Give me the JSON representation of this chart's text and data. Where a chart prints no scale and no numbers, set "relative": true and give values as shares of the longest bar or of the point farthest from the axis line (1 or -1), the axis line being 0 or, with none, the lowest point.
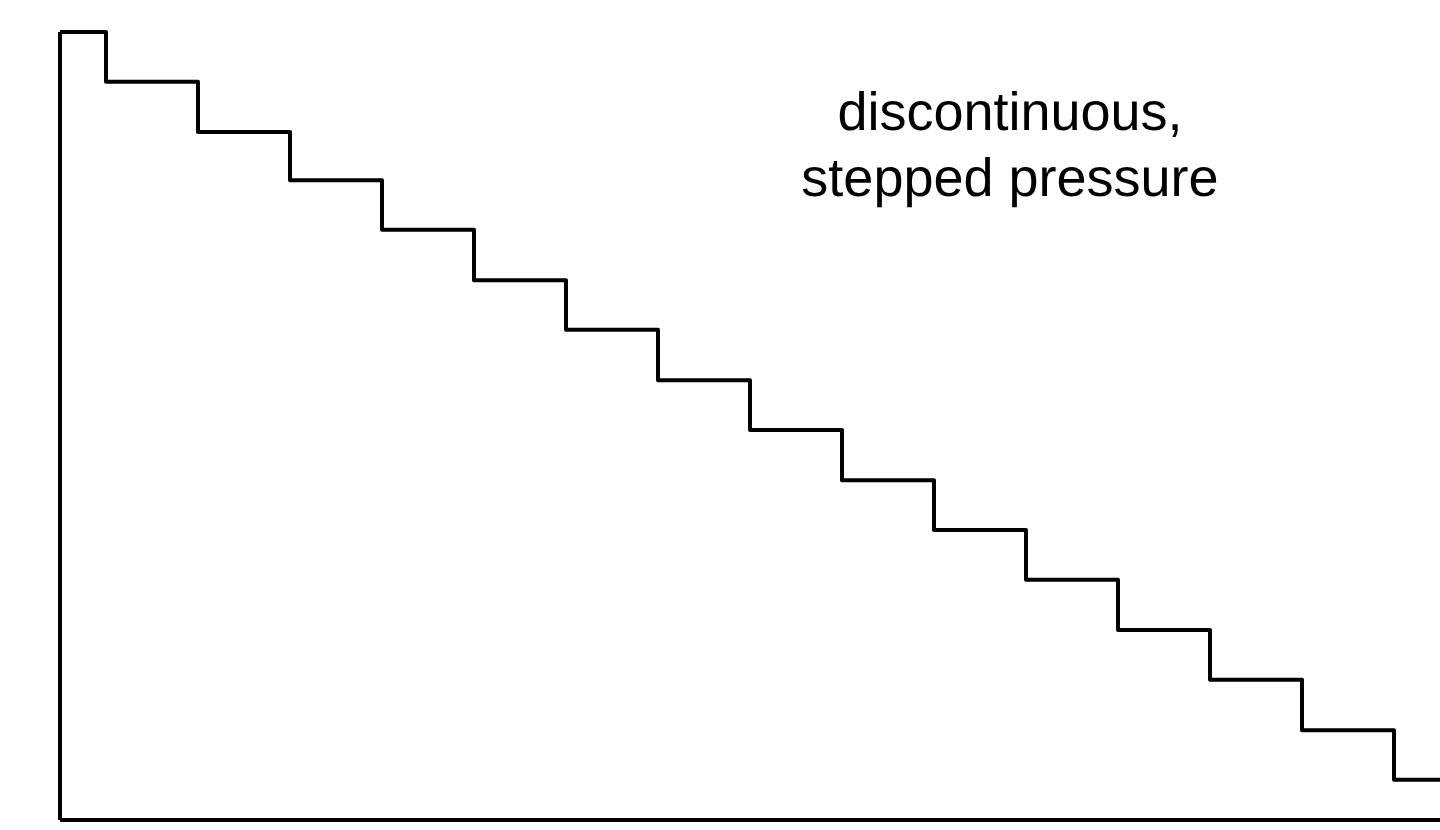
{
  "chart_data": {
    "type": "step",
    "relative": true,
    "categories": [
      null,
      null,
      null,
      null,
      null,
      null,
      null,
      null,
      null,
      null,
      null,
      null,
      null,
      null,
      null,
      null
    ],
    "series": [
      {
        "color": "#000000",
        "values": [
          1,
          0.937,
          0.873,
          0.812,
          0.749,
          0.685,
          0.622,
          0.558,
          0.495,
          0.431,
          0.368,
          0.305,
          0.241,
          0.178,
          0.114,
          0.051
        ]
      }
    ],
    "annotations": [
      "discontinuous,\nstepped pressure"
    ]
  }
}
